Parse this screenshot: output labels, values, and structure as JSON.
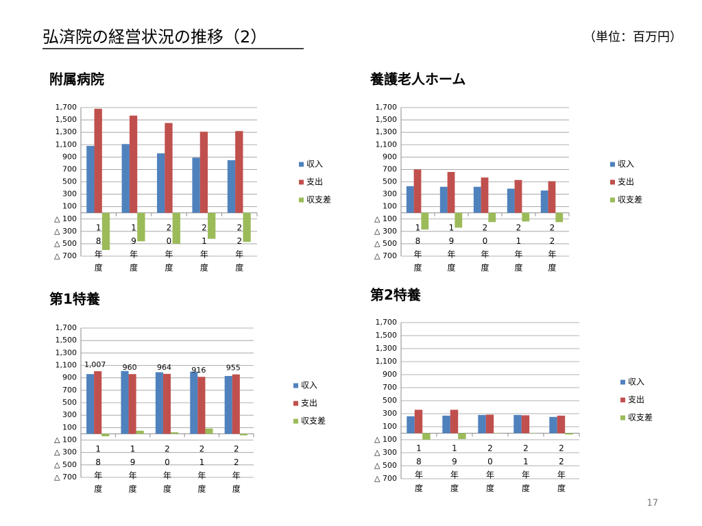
{
  "title": "弘済院の経営状況の推移（2）",
  "unit": "（単位：百万円）",
  "page_number": "17",
  "chart_data": [
    {
      "type": "bar",
      "title": "附属病院",
      "categories": [
        "18年度",
        "19年度",
        "20年度",
        "21年度",
        "22年度"
      ],
      "series": [
        {
          "name": "収入",
          "color": "#4f81bd",
          "values": [
            1080,
            1110,
            960,
            890,
            850
          ]
        },
        {
          "name": "支出",
          "color": "#c0504d",
          "values": [
            1680,
            1570,
            1450,
            1310,
            1320
          ]
        },
        {
          "name": "収支差",
          "color": "#9bbb59",
          "values": [
            -600,
            -460,
            -500,
            -420,
            -470
          ]
        }
      ],
      "ylim": [
        -700,
        1700
      ],
      "yticks": [
        {
          "value": 1700,
          "label": "1,700"
        },
        {
          "value": 1500,
          "label": "1,500"
        },
        {
          "value": 1300,
          "label": "1,300"
        },
        {
          "value": 1100,
          "label": "1,100"
        },
        900,
        700,
        500,
        300,
        100,
        {
          "value": -100,
          "label": "△ 100"
        },
        {
          "value": -300,
          "label": "△ 300"
        },
        {
          "value": -500,
          "label": "△ 500"
        },
        {
          "value": -700,
          "label": "△ 700"
        }
      ],
      "grid": true,
      "legend": "right"
    },
    {
      "type": "bar",
      "title": "養護老人ホーム",
      "categories": [
        "18年度",
        "19年度",
        "20年度",
        "21年度",
        "22年度"
      ],
      "series": [
        {
          "name": "収入",
          "color": "#4f81bd",
          "values": [
            430,
            420,
            420,
            390,
            360
          ]
        },
        {
          "name": "支出",
          "color": "#c0504d",
          "values": [
            700,
            660,
            570,
            530,
            510
          ]
        },
        {
          "name": "収支差",
          "color": "#9bbb59",
          "values": [
            -270,
            -240,
            -150,
            -140,
            -150
          ]
        }
      ],
      "ylim": [
        -700,
        1700
      ],
      "yticks": [
        {
          "value": 1700,
          "label": "1,700"
        },
        {
          "value": 1500,
          "label": "1,500"
        },
        {
          "value": 1300,
          "label": "1,300"
        },
        {
          "value": 1100,
          "label": "1,100"
        },
        900,
        700,
        500,
        300,
        100,
        {
          "value": -100,
          "label": "△ 100"
        },
        {
          "value": -300,
          "label": "△ 300"
        },
        {
          "value": -500,
          "label": "△ 500"
        },
        {
          "value": -700,
          "label": "△ 700"
        }
      ],
      "grid": true,
      "legend": "right"
    },
    {
      "type": "bar",
      "title": "第1特養",
      "categories": [
        "18年度",
        "19年度",
        "20年度",
        "21年度",
        "22年度"
      ],
      "series": [
        {
          "name": "収入",
          "color": "#4f81bd",
          "values": [
            960,
            1010,
            990,
            1000,
            930
          ]
        },
        {
          "name": "支出",
          "color": "#c0504d",
          "values": [
            1007,
            960,
            964,
            916,
            955
          ],
          "value_labels": [
            "1,007",
            "960",
            "964",
            "916",
            "955"
          ]
        },
        {
          "name": "収支差",
          "color": "#9bbb59",
          "values": [
            -40,
            50,
            25,
            85,
            -25
          ]
        }
      ],
      "ylim": [
        -700,
        1700
      ],
      "yticks": [
        {
          "value": 1700,
          "label": "1,700"
        },
        {
          "value": 1500,
          "label": "1,500"
        },
        {
          "value": 1300,
          "label": "1,300"
        },
        {
          "value": 1100,
          "label": "1,100"
        },
        900,
        700,
        500,
        300,
        100,
        {
          "value": -100,
          "label": "△ 100"
        },
        {
          "value": -300,
          "label": "△ 300"
        },
        {
          "value": -500,
          "label": "△ 500"
        },
        {
          "value": -700,
          "label": "△ 700"
        }
      ],
      "grid": true,
      "legend": "right"
    },
    {
      "type": "bar",
      "title": "第2特養",
      "categories": [
        "18年度",
        "19年度",
        "20年度",
        "21年度",
        "22年度"
      ],
      "series": [
        {
          "name": "収入",
          "color": "#4f81bd",
          "values": [
            260,
            270,
            280,
            280,
            250
          ]
        },
        {
          "name": "支出",
          "color": "#c0504d",
          "values": [
            360,
            360,
            285,
            275,
            270
          ]
        },
        {
          "name": "収支差",
          "color": "#9bbb59",
          "values": [
            -100,
            -90,
            -5,
            5,
            -20
          ]
        }
      ],
      "ylim": [
        -700,
        1700
      ],
      "yticks": [
        {
          "value": 1700,
          "label": "1,700"
        },
        {
          "value": 1500,
          "label": "1,500"
        },
        {
          "value": 1300,
          "label": "1,300"
        },
        {
          "value": 1100,
          "label": "1,100"
        },
        900,
        700,
        500,
        300,
        100,
        {
          "value": -100,
          "label": "△ 100"
        },
        {
          "value": -300,
          "label": "△ 300"
        },
        {
          "value": -500,
          "label": "△ 500"
        },
        {
          "value": -700,
          "label": "△ 700"
        }
      ],
      "grid": true,
      "legend": "right"
    }
  ]
}
